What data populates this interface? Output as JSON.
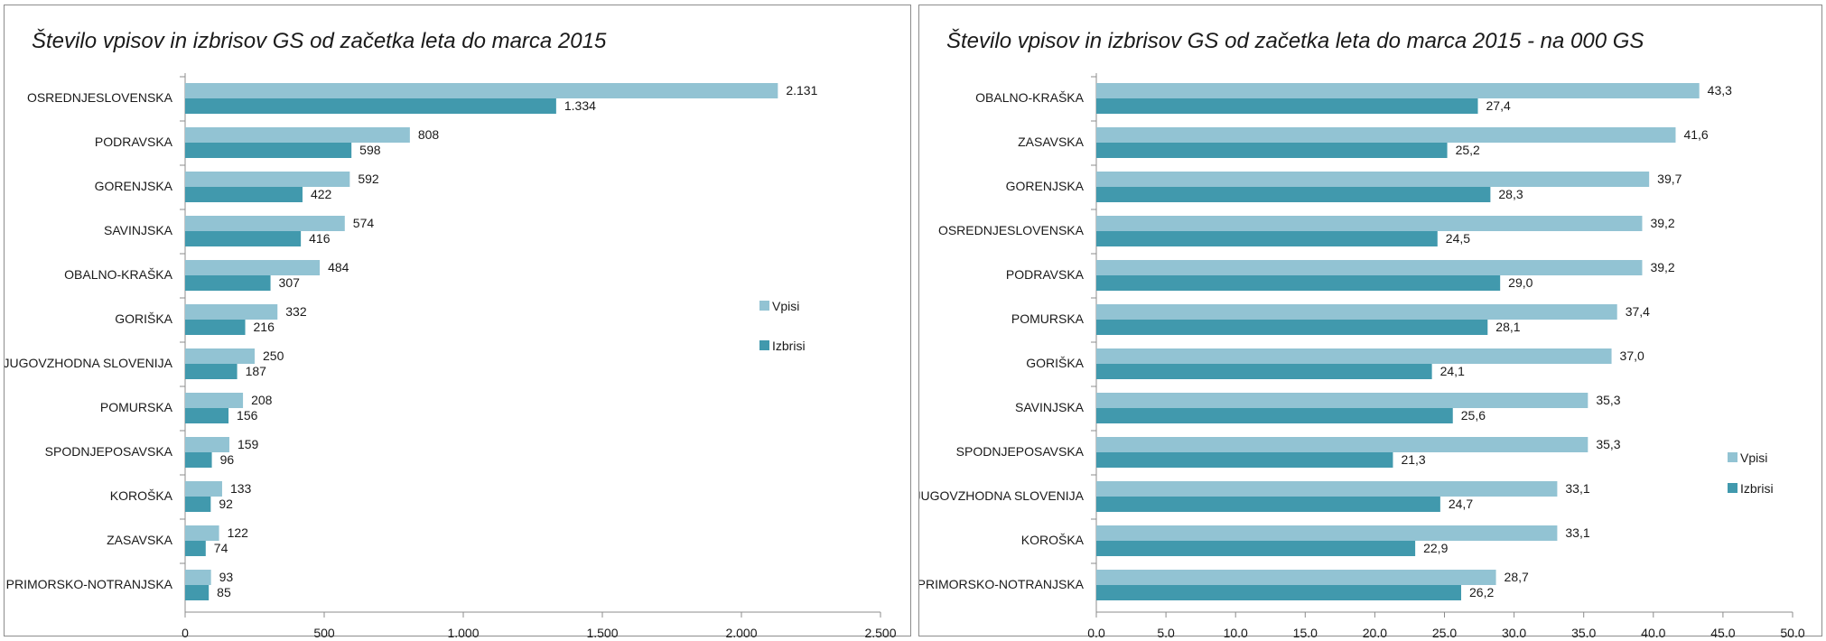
{
  "chart_data": [
    {
      "type": "bar",
      "orientation": "horizontal",
      "title": "Število vpisov in izbrisov GS od začetka leta do marca 2015",
      "categories": [
        "OSREDNJESLOVENSKA",
        "PODRAVSKA",
        "GORENJSKA",
        "SAVINJSKA",
        "OBALNO-KRAŠKA",
        "GORIŠKA",
        "JUGOVZHODNA  SLOVENIJA",
        "POMURSKA",
        "SPODNJEPOSAVSKA",
        "KOROŠKA",
        "ZASAVSKA",
        "PRIMORSKO-NOTRANJSKA"
      ],
      "series": [
        {
          "name": "Vpisi",
          "color": "#92c3d3",
          "values": [
            2131,
            808,
            592,
            574,
            484,
            332,
            250,
            208,
            159,
            133,
            122,
            93
          ],
          "labels": [
            "2.131",
            "808",
            "592",
            "574",
            "484",
            "332",
            "250",
            "208",
            "159",
            "133",
            "122",
            "93"
          ]
        },
        {
          "name": "Izbrisi",
          "color": "#4199ad",
          "values": [
            1334,
            598,
            422,
            416,
            307,
            216,
            187,
            156,
            96,
            92,
            74,
            85
          ],
          "labels": [
            "1.334",
            "598",
            "422",
            "416",
            "307",
            "216",
            "187",
            "156",
            "96",
            "92",
            "74",
            "85"
          ]
        }
      ],
      "xlim": [
        0,
        2500
      ],
      "xticks": [
        0,
        500,
        1000,
        1500,
        2000,
        2500
      ],
      "xtick_labels": [
        "0",
        "500",
        "1.000",
        "1.500",
        "2.000",
        "2.500"
      ],
      "grid": false,
      "legend_position": "right"
    },
    {
      "type": "bar",
      "orientation": "horizontal",
      "title": "Število vpisov in izbrisov GS od začetka leta do marca 2015 - na 000 GS",
      "categories": [
        "OBALNO-KRAŠKA",
        "ZASAVSKA",
        "GORENJSKA",
        "OSREDNJESLOVENSKA",
        "PODRAVSKA",
        "POMURSKA",
        "GORIŠKA",
        "SAVINJSKA",
        "SPODNJEPOSAVSKA",
        "JUGOVZHODNA  SLOVENIJA",
        "KOROŠKA",
        "PRIMORSKO-NOTRANJSKA"
      ],
      "series": [
        {
          "name": "Vpisi",
          "color": "#92c3d3",
          "values": [
            43.3,
            41.6,
            39.7,
            39.2,
            39.2,
            37.4,
            37.0,
            35.3,
            35.3,
            33.1,
            33.1,
            28.7
          ],
          "labels": [
            "43,3",
            "41,6",
            "39,7",
            "39,2",
            "39,2",
            "37,4",
            "37,0",
            "35,3",
            "35,3",
            "33,1",
            "33,1",
            "28,7"
          ]
        },
        {
          "name": "Izbrisi",
          "color": "#4199ad",
          "values": [
            27.4,
            25.2,
            28.3,
            24.5,
            29.0,
            28.1,
            24.1,
            25.6,
            21.3,
            24.7,
            22.9,
            26.2
          ],
          "labels": [
            "27,4",
            "25,2",
            "28,3",
            "24,5",
            "29,0",
            "28,1",
            "24,1",
            "25,6",
            "21,3",
            "24,7",
            "22,9",
            "26,2"
          ]
        }
      ],
      "xlim": [
        0,
        50
      ],
      "xticks": [
        0,
        5,
        10,
        15,
        20,
        25,
        30,
        35,
        40,
        45,
        50
      ],
      "xtick_labels": [
        "0,0",
        "5,0",
        "10,0",
        "15,0",
        "20,0",
        "25,0",
        "30,0",
        "35,0",
        "40,0",
        "45,0",
        "50,0"
      ],
      "grid": false,
      "legend_position": "right"
    }
  ]
}
